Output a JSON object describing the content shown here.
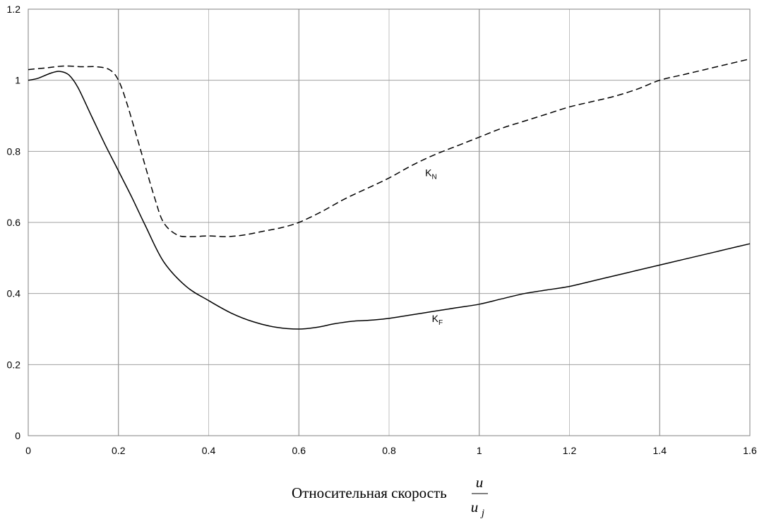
{
  "chart_data": {
    "type": "line",
    "xlabel": "Относительная скорость",
    "xlabel_fraction": {
      "numerator": "u",
      "denominator": "u",
      "denominator_subscript": "j"
    },
    "xlim": [
      0,
      1.6
    ],
    "ylim": [
      0,
      1.2
    ],
    "xticks": [
      0,
      0.2,
      0.4,
      0.6,
      0.8,
      1,
      1.2,
      1.4,
      1.6
    ],
    "xtick_labels": [
      "0",
      "0.2",
      "0.4",
      "0.6",
      "0.8",
      "1",
      "1.2",
      "1.4",
      "1.6"
    ],
    "yticks": [
      0,
      0.2,
      0.4,
      0.6,
      0.8,
      1,
      1.2
    ],
    "ytick_labels": [
      "0",
      "0.2",
      "0.4",
      "0.6",
      "0.8",
      "1",
      "1.2"
    ],
    "grid": true,
    "series": [
      {
        "name": "K",
        "name_subscript": "N",
        "style": "dashed",
        "color": "#000000",
        "x": [
          0,
          0.04,
          0.08,
          0.12,
          0.15,
          0.18,
          0.2,
          0.22,
          0.25,
          0.28,
          0.3,
          0.33,
          0.36,
          0.4,
          0.44,
          0.48,
          0.52,
          0.56,
          0.6,
          0.65,
          0.7,
          0.75,
          0.8,
          0.85,
          0.9,
          0.95,
          1.0,
          1.05,
          1.1,
          1.15,
          1.2,
          1.25,
          1.3,
          1.35,
          1.4,
          1.45,
          1.5,
          1.55,
          1.6
        ],
        "y": [
          1.03,
          1.035,
          1.04,
          1.038,
          1.038,
          1.03,
          1.0,
          0.93,
          0.8,
          0.67,
          0.6,
          0.565,
          0.56,
          0.562,
          0.56,
          0.565,
          0.575,
          0.585,
          0.6,
          0.63,
          0.665,
          0.695,
          0.725,
          0.76,
          0.79,
          0.815,
          0.84,
          0.865,
          0.885,
          0.905,
          0.925,
          0.94,
          0.955,
          0.975,
          1.0,
          1.015,
          1.03,
          1.045,
          1.06
        ]
      },
      {
        "name": "K",
        "name_subscript": "F",
        "style": "solid",
        "color": "#000000",
        "x": [
          0,
          0.02,
          0.05,
          0.07,
          0.09,
          0.11,
          0.14,
          0.17,
          0.2,
          0.23,
          0.26,
          0.3,
          0.35,
          0.4,
          0.45,
          0.5,
          0.55,
          0.6,
          0.64,
          0.68,
          0.72,
          0.76,
          0.8,
          0.85,
          0.9,
          0.95,
          1.0,
          1.05,
          1.1,
          1.15,
          1.2,
          1.25,
          1.3,
          1.35,
          1.4,
          1.45,
          1.5,
          1.55,
          1.6
        ],
        "y": [
          1.0,
          1.005,
          1.02,
          1.025,
          1.015,
          0.98,
          0.9,
          0.82,
          0.745,
          0.67,
          0.59,
          0.49,
          0.42,
          0.38,
          0.345,
          0.32,
          0.305,
          0.3,
          0.305,
          0.315,
          0.322,
          0.325,
          0.33,
          0.34,
          0.35,
          0.36,
          0.37,
          0.385,
          0.4,
          0.41,
          0.42,
          0.435,
          0.45,
          0.465,
          0.48,
          0.495,
          0.51,
          0.525,
          0.54
        ]
      }
    ],
    "annotations": [
      {
        "series": 0,
        "text": "K",
        "subscript": "N",
        "x": 0.88,
        "y": 0.73
      },
      {
        "series": 1,
        "text": "K",
        "subscript": "F",
        "x": 0.895,
        "y": 0.32
      }
    ]
  }
}
